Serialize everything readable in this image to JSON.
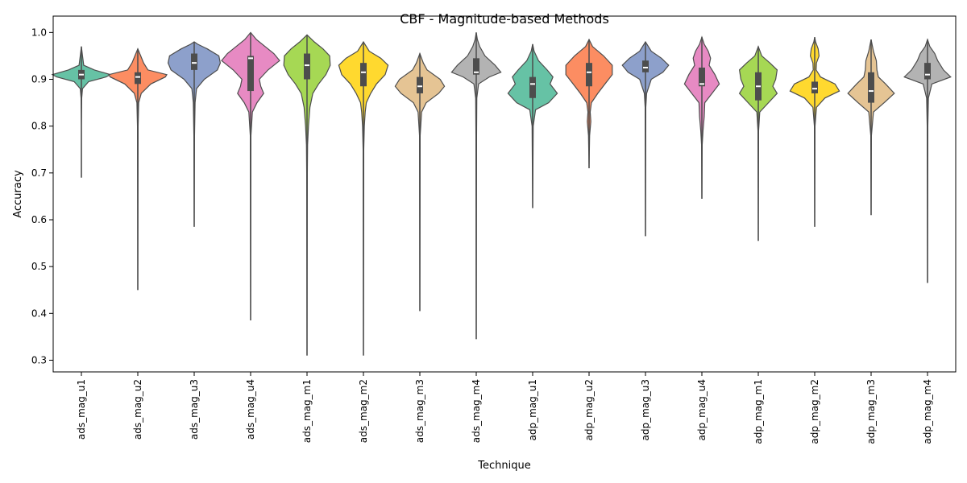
{
  "chart_data": {
    "type": "violin",
    "title": "CBF - Magnitude-based Methods",
    "xlabel": "Technique",
    "ylabel": "Accuracy",
    "ylim": [
      0.275,
      1.035
    ],
    "yticks": [
      0.3,
      0.4,
      0.5,
      0.6,
      0.7,
      0.8,
      0.9,
      1.0
    ],
    "ytick_labels": [
      "0.3",
      "0.4",
      "0.5",
      "0.6",
      "0.7",
      "0.8",
      "0.9",
      "1.0"
    ],
    "grid": false,
    "legend": "none",
    "categories": [
      "ads_mag_u1",
      "ads_mag_u2",
      "ads_mag_u3",
      "ads_mag_u4",
      "ads_mag_m1",
      "ads_mag_m2",
      "ads_mag_m3",
      "ads_mag_m4",
      "adp_mag_u1",
      "adp_mag_u2",
      "adp_mag_u3",
      "adp_mag_u4",
      "adp_mag_m1",
      "adp_mag_m2",
      "adp_mag_m3",
      "adp_mag_m4"
    ],
    "colors": [
      "#66c2a5",
      "#fc8d62",
      "#8da0cb",
      "#e78ac3",
      "#a6d854",
      "#ffd92f",
      "#e5c494",
      "#b3b3b3",
      "#66c2a5",
      "#fc8d62",
      "#8da0cb",
      "#e78ac3",
      "#a6d854",
      "#ffd92f",
      "#e5c494",
      "#b3b3b3"
    ],
    "violins": [
      {
        "min": 0.69,
        "q1": 0.9,
        "median": 0.91,
        "q3": 0.92,
        "max": 0.97,
        "density": [
          [
            0.69,
            0.0
          ],
          [
            0.8,
            0.0
          ],
          [
            0.86,
            0.01
          ],
          [
            0.88,
            0.04
          ],
          [
            0.895,
            0.25
          ],
          [
            0.905,
            0.85
          ],
          [
            0.91,
            1.0
          ],
          [
            0.92,
            0.45
          ],
          [
            0.93,
            0.08
          ],
          [
            0.95,
            0.04
          ],
          [
            0.97,
            0.0
          ]
        ]
      },
      {
        "min": 0.45,
        "q1": 0.89,
        "median": 0.905,
        "q3": 0.915,
        "max": 0.965,
        "density": [
          [
            0.45,
            0.0
          ],
          [
            0.8,
            0.01
          ],
          [
            0.85,
            0.03
          ],
          [
            0.87,
            0.12
          ],
          [
            0.89,
            0.45
          ],
          [
            0.905,
            0.95
          ],
          [
            0.91,
            1.0
          ],
          [
            0.92,
            0.35
          ],
          [
            0.935,
            0.2
          ],
          [
            0.95,
            0.1
          ],
          [
            0.965,
            0.0
          ]
        ]
      },
      {
        "min": 0.585,
        "q1": 0.92,
        "median": 0.935,
        "q3": 0.955,
        "max": 0.98,
        "density": [
          [
            0.585,
            0.0
          ],
          [
            0.78,
            0.01
          ],
          [
            0.85,
            0.03
          ],
          [
            0.88,
            0.08
          ],
          [
            0.9,
            0.35
          ],
          [
            0.92,
            0.8
          ],
          [
            0.935,
            0.9
          ],
          [
            0.95,
            0.85
          ],
          [
            0.965,
            0.45
          ],
          [
            0.975,
            0.12
          ],
          [
            0.98,
            0.0
          ]
        ]
      },
      {
        "min": 0.385,
        "q1": 0.875,
        "median": 0.945,
        "q3": 0.95,
        "max": 1.0,
        "density": [
          [
            0.385,
            0.0
          ],
          [
            0.78,
            0.01
          ],
          [
            0.83,
            0.06
          ],
          [
            0.85,
            0.22
          ],
          [
            0.87,
            0.45
          ],
          [
            0.885,
            0.35
          ],
          [
            0.9,
            0.3
          ],
          [
            0.92,
            0.6
          ],
          [
            0.94,
            1.0
          ],
          [
            0.955,
            0.8
          ],
          [
            0.97,
            0.5
          ],
          [
            0.985,
            0.2
          ],
          [
            1.0,
            0.0
          ]
        ]
      },
      {
        "min": 0.31,
        "q1": 0.9,
        "median": 0.93,
        "q3": 0.955,
        "max": 0.995,
        "density": [
          [
            0.31,
            0.0
          ],
          [
            0.7,
            0.01
          ],
          [
            0.76,
            0.02
          ],
          [
            0.8,
            0.05
          ],
          [
            0.84,
            0.1
          ],
          [
            0.87,
            0.2
          ],
          [
            0.89,
            0.4
          ],
          [
            0.91,
            0.65
          ],
          [
            0.93,
            0.8
          ],
          [
            0.95,
            0.78
          ],
          [
            0.965,
            0.55
          ],
          [
            0.98,
            0.25
          ],
          [
            0.995,
            0.0
          ]
        ]
      },
      {
        "min": 0.31,
        "q1": 0.885,
        "median": 0.915,
        "q3": 0.935,
        "max": 0.98,
        "density": [
          [
            0.31,
            0.0
          ],
          [
            0.75,
            0.01
          ],
          [
            0.8,
            0.03
          ],
          [
            0.83,
            0.06
          ],
          [
            0.85,
            0.1
          ],
          [
            0.87,
            0.25
          ],
          [
            0.89,
            0.45
          ],
          [
            0.91,
            0.75
          ],
          [
            0.93,
            0.85
          ],
          [
            0.945,
            0.6
          ],
          [
            0.96,
            0.2
          ],
          [
            0.98,
            0.0
          ]
        ]
      },
      {
        "min": 0.405,
        "q1": 0.87,
        "median": 0.885,
        "q3": 0.905,
        "max": 0.955,
        "density": [
          [
            0.405,
            0.0
          ],
          [
            0.78,
            0.01
          ],
          [
            0.83,
            0.06
          ],
          [
            0.85,
            0.22
          ],
          [
            0.87,
            0.65
          ],
          [
            0.885,
            0.85
          ],
          [
            0.9,
            0.7
          ],
          [
            0.92,
            0.25
          ],
          [
            0.935,
            0.12
          ],
          [
            0.955,
            0.0
          ]
        ]
      },
      {
        "min": 0.345,
        "q1": 0.91,
        "median": 0.915,
        "q3": 0.945,
        "max": 1.0,
        "density": [
          [
            0.345,
            0.0
          ],
          [
            0.78,
            0.01
          ],
          [
            0.86,
            0.02
          ],
          [
            0.89,
            0.08
          ],
          [
            0.905,
            0.45
          ],
          [
            0.915,
            0.85
          ],
          [
            0.93,
            0.65
          ],
          [
            0.95,
            0.3
          ],
          [
            0.97,
            0.12
          ],
          [
            0.985,
            0.04
          ],
          [
            1.0,
            0.0
          ]
        ]
      },
      {
        "min": 0.625,
        "q1": 0.86,
        "median": 0.89,
        "q3": 0.905,
        "max": 0.975,
        "density": [
          [
            0.625,
            0.0
          ],
          [
            0.72,
            0.01
          ],
          [
            0.8,
            0.02
          ],
          [
            0.835,
            0.1
          ],
          [
            0.85,
            0.55
          ],
          [
            0.87,
            0.85
          ],
          [
            0.89,
            0.6
          ],
          [
            0.905,
            0.7
          ],
          [
            0.92,
            0.5
          ],
          [
            0.94,
            0.2
          ],
          [
            0.96,
            0.05
          ],
          [
            0.975,
            0.0
          ]
        ]
      },
      {
        "min": 0.71,
        "q1": 0.885,
        "median": 0.915,
        "q3": 0.935,
        "max": 0.985,
        "density": [
          [
            0.71,
            0.0
          ],
          [
            0.78,
            0.02
          ],
          [
            0.81,
            0.06
          ],
          [
            0.83,
            0.04
          ],
          [
            0.85,
            0.08
          ],
          [
            0.87,
            0.3
          ],
          [
            0.89,
            0.55
          ],
          [
            0.91,
            0.8
          ],
          [
            0.93,
            0.8
          ],
          [
            0.95,
            0.5
          ],
          [
            0.97,
            0.12
          ],
          [
            0.985,
            0.0
          ]
        ]
      },
      {
        "min": 0.565,
        "q1": 0.915,
        "median": 0.925,
        "q3": 0.94,
        "max": 0.98,
        "density": [
          [
            0.565,
            0.0
          ],
          [
            0.84,
            0.01
          ],
          [
            0.87,
            0.04
          ],
          [
            0.9,
            0.2
          ],
          [
            0.915,
            0.6
          ],
          [
            0.93,
            0.8
          ],
          [
            0.945,
            0.55
          ],
          [
            0.96,
            0.2
          ],
          [
            0.98,
            0.0
          ]
        ]
      },
      {
        "min": 0.645,
        "q1": 0.885,
        "median": 0.89,
        "q3": 0.925,
        "max": 0.99,
        "density": [
          [
            0.645,
            0.0
          ],
          [
            0.76,
            0.01
          ],
          [
            0.79,
            0.04
          ],
          [
            0.82,
            0.08
          ],
          [
            0.85,
            0.1
          ],
          [
            0.87,
            0.35
          ],
          [
            0.89,
            0.6
          ],
          [
            0.91,
            0.45
          ],
          [
            0.93,
            0.25
          ],
          [
            0.945,
            0.3
          ],
          [
            0.96,
            0.22
          ],
          [
            0.975,
            0.08
          ],
          [
            0.99,
            0.0
          ]
        ]
      },
      {
        "min": 0.555,
        "q1": 0.855,
        "median": 0.885,
        "q3": 0.915,
        "max": 0.97,
        "density": [
          [
            0.555,
            0.0
          ],
          [
            0.79,
            0.01
          ],
          [
            0.83,
            0.05
          ],
          [
            0.85,
            0.35
          ],
          [
            0.87,
            0.65
          ],
          [
            0.885,
            0.5
          ],
          [
            0.9,
            0.6
          ],
          [
            0.92,
            0.65
          ],
          [
            0.935,
            0.4
          ],
          [
            0.95,
            0.12
          ],
          [
            0.97,
            0.0
          ]
        ]
      },
      {
        "min": 0.585,
        "q1": 0.87,
        "median": 0.88,
        "q3": 0.895,
        "max": 0.99,
        "density": [
          [
            0.585,
            0.0
          ],
          [
            0.8,
            0.01
          ],
          [
            0.84,
            0.06
          ],
          [
            0.86,
            0.35
          ],
          [
            0.875,
            0.85
          ],
          [
            0.89,
            0.7
          ],
          [
            0.905,
            0.2
          ],
          [
            0.92,
            0.05
          ],
          [
            0.935,
            0.06
          ],
          [
            0.95,
            0.15
          ],
          [
            0.965,
            0.12
          ],
          [
            0.98,
            0.03
          ],
          [
            0.99,
            0.0
          ]
        ]
      },
      {
        "min": 0.61,
        "q1": 0.85,
        "median": 0.875,
        "q3": 0.915,
        "max": 0.985,
        "density": [
          [
            0.61,
            0.0
          ],
          [
            0.78,
            0.01
          ],
          [
            0.83,
            0.08
          ],
          [
            0.85,
            0.45
          ],
          [
            0.87,
            0.8
          ],
          [
            0.89,
            0.5
          ],
          [
            0.905,
            0.25
          ],
          [
            0.92,
            0.2
          ],
          [
            0.94,
            0.18
          ],
          [
            0.96,
            0.08
          ],
          [
            0.985,
            0.0
          ]
        ]
      },
      {
        "min": 0.465,
        "q1": 0.9,
        "median": 0.91,
        "q3": 0.935,
        "max": 0.985,
        "density": [
          [
            0.465,
            0.0
          ],
          [
            0.8,
            0.01
          ],
          [
            0.86,
            0.03
          ],
          [
            0.89,
            0.15
          ],
          [
            0.905,
            0.8
          ],
          [
            0.92,
            0.55
          ],
          [
            0.94,
            0.35
          ],
          [
            0.955,
            0.25
          ],
          [
            0.97,
            0.08
          ],
          [
            0.985,
            0.0
          ]
        ]
      }
    ]
  }
}
